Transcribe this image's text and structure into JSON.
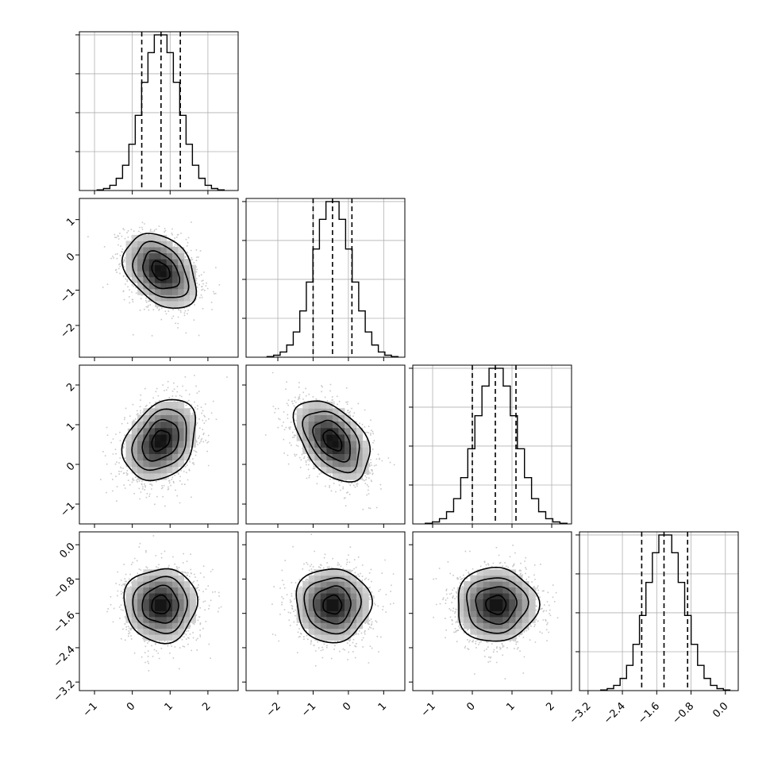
{
  "chart_data": {
    "type": "corner",
    "n_params": 4,
    "grid": true,
    "quantiles": [
      0.16,
      0.5,
      0.84
    ],
    "params": [
      {
        "mean": 0.75,
        "sd": 0.48,
        "range": [
          -1.4,
          2.8
        ],
        "ticks": [
          -1,
          0,
          1,
          2
        ],
        "tick_labels": [
          "−1",
          "0",
          "1",
          "2"
        ],
        "quantile_values": [
          0.25,
          0.76,
          1.27
        ]
      },
      {
        "mean": -0.45,
        "sd": 0.53,
        "range": [
          -2.9,
          1.6
        ],
        "ticks": [
          -2,
          -1,
          0,
          1
        ],
        "tick_labels": [
          "−2",
          "−1",
          "0",
          "1"
        ],
        "quantile_values": [
          -1.0,
          -0.45,
          0.1
        ]
      },
      {
        "mean": 0.6,
        "sd": 0.51,
        "range": [
          -1.5,
          2.5
        ],
        "ticks": [
          -1,
          0,
          1,
          2
        ],
        "tick_labels": [
          "−1",
          "0",
          "1",
          "2"
        ],
        "quantile_values": [
          0.0,
          0.58,
          1.1
        ]
      },
      {
        "mean": -1.4,
        "sd": 0.43,
        "range": [
          -3.4,
          0.3
        ],
        "ticks": [
          -3.2,
          -2.4,
          -1.6,
          -0.8,
          0.0
        ],
        "tick_labels": [
          "−3.2",
          "−2.4",
          "−1.6",
          "−0.8",
          "0.0"
        ],
        "quantile_values": [
          -1.95,
          -1.43,
          -0.88
        ]
      }
    ],
    "correlations": [
      [
        1.0,
        -0.35,
        0.3,
        0.0
      ],
      [
        -0.35,
        1.0,
        -0.45,
        0.0
      ],
      [
        0.3,
        -0.45,
        1.0,
        0.0
      ],
      [
        0.0,
        0.0,
        0.0,
        1.0
      ]
    ],
    "histogram_bins": 20,
    "contour_levels_sigma": [
      0.5,
      1.0,
      1.5,
      2.0
    ],
    "colors": {
      "line": "#000000",
      "grid": "#b0b0b0",
      "scatter": "#000000"
    }
  }
}
